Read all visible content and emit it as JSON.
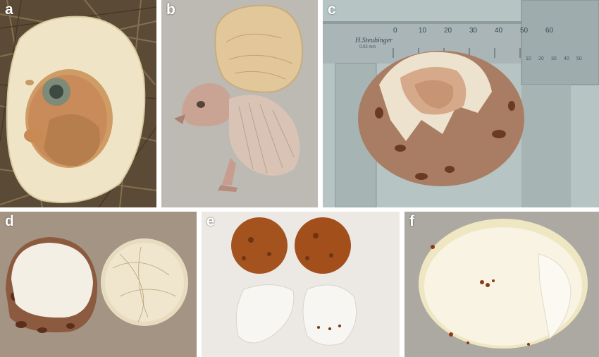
{
  "panels": [
    {
      "letter": "a",
      "subject": "embryo-in-opened-egg"
    },
    {
      "letter": "b",
      "subject": "dead-chick-and-eggshell"
    },
    {
      "letter": "c",
      "subject": "hatching-egg-with-caliper"
    },
    {
      "letter": "d",
      "subject": "two-eggshell-halves"
    },
    {
      "letter": "e",
      "subject": "two-whole-eggs-and-shells"
    },
    {
      "letter": "f",
      "subject": "eggshell-interior"
    }
  ],
  "caliper": {
    "brand": "H.Steubinger",
    "unit_text": "0.02 mm",
    "main_scale": [
      "0",
      "10",
      "20",
      "30",
      "40",
      "50",
      "60"
    ],
    "vernier_scale": [
      "10",
      "20",
      "30",
      "40",
      "50"
    ]
  },
  "colors": {
    "border": "#ffffff",
    "letter": "#ffffff",
    "shell_inner": "#f1e8cf",
    "shell_speckle": "#7a3a1e",
    "nest": "#6d5a40"
  }
}
